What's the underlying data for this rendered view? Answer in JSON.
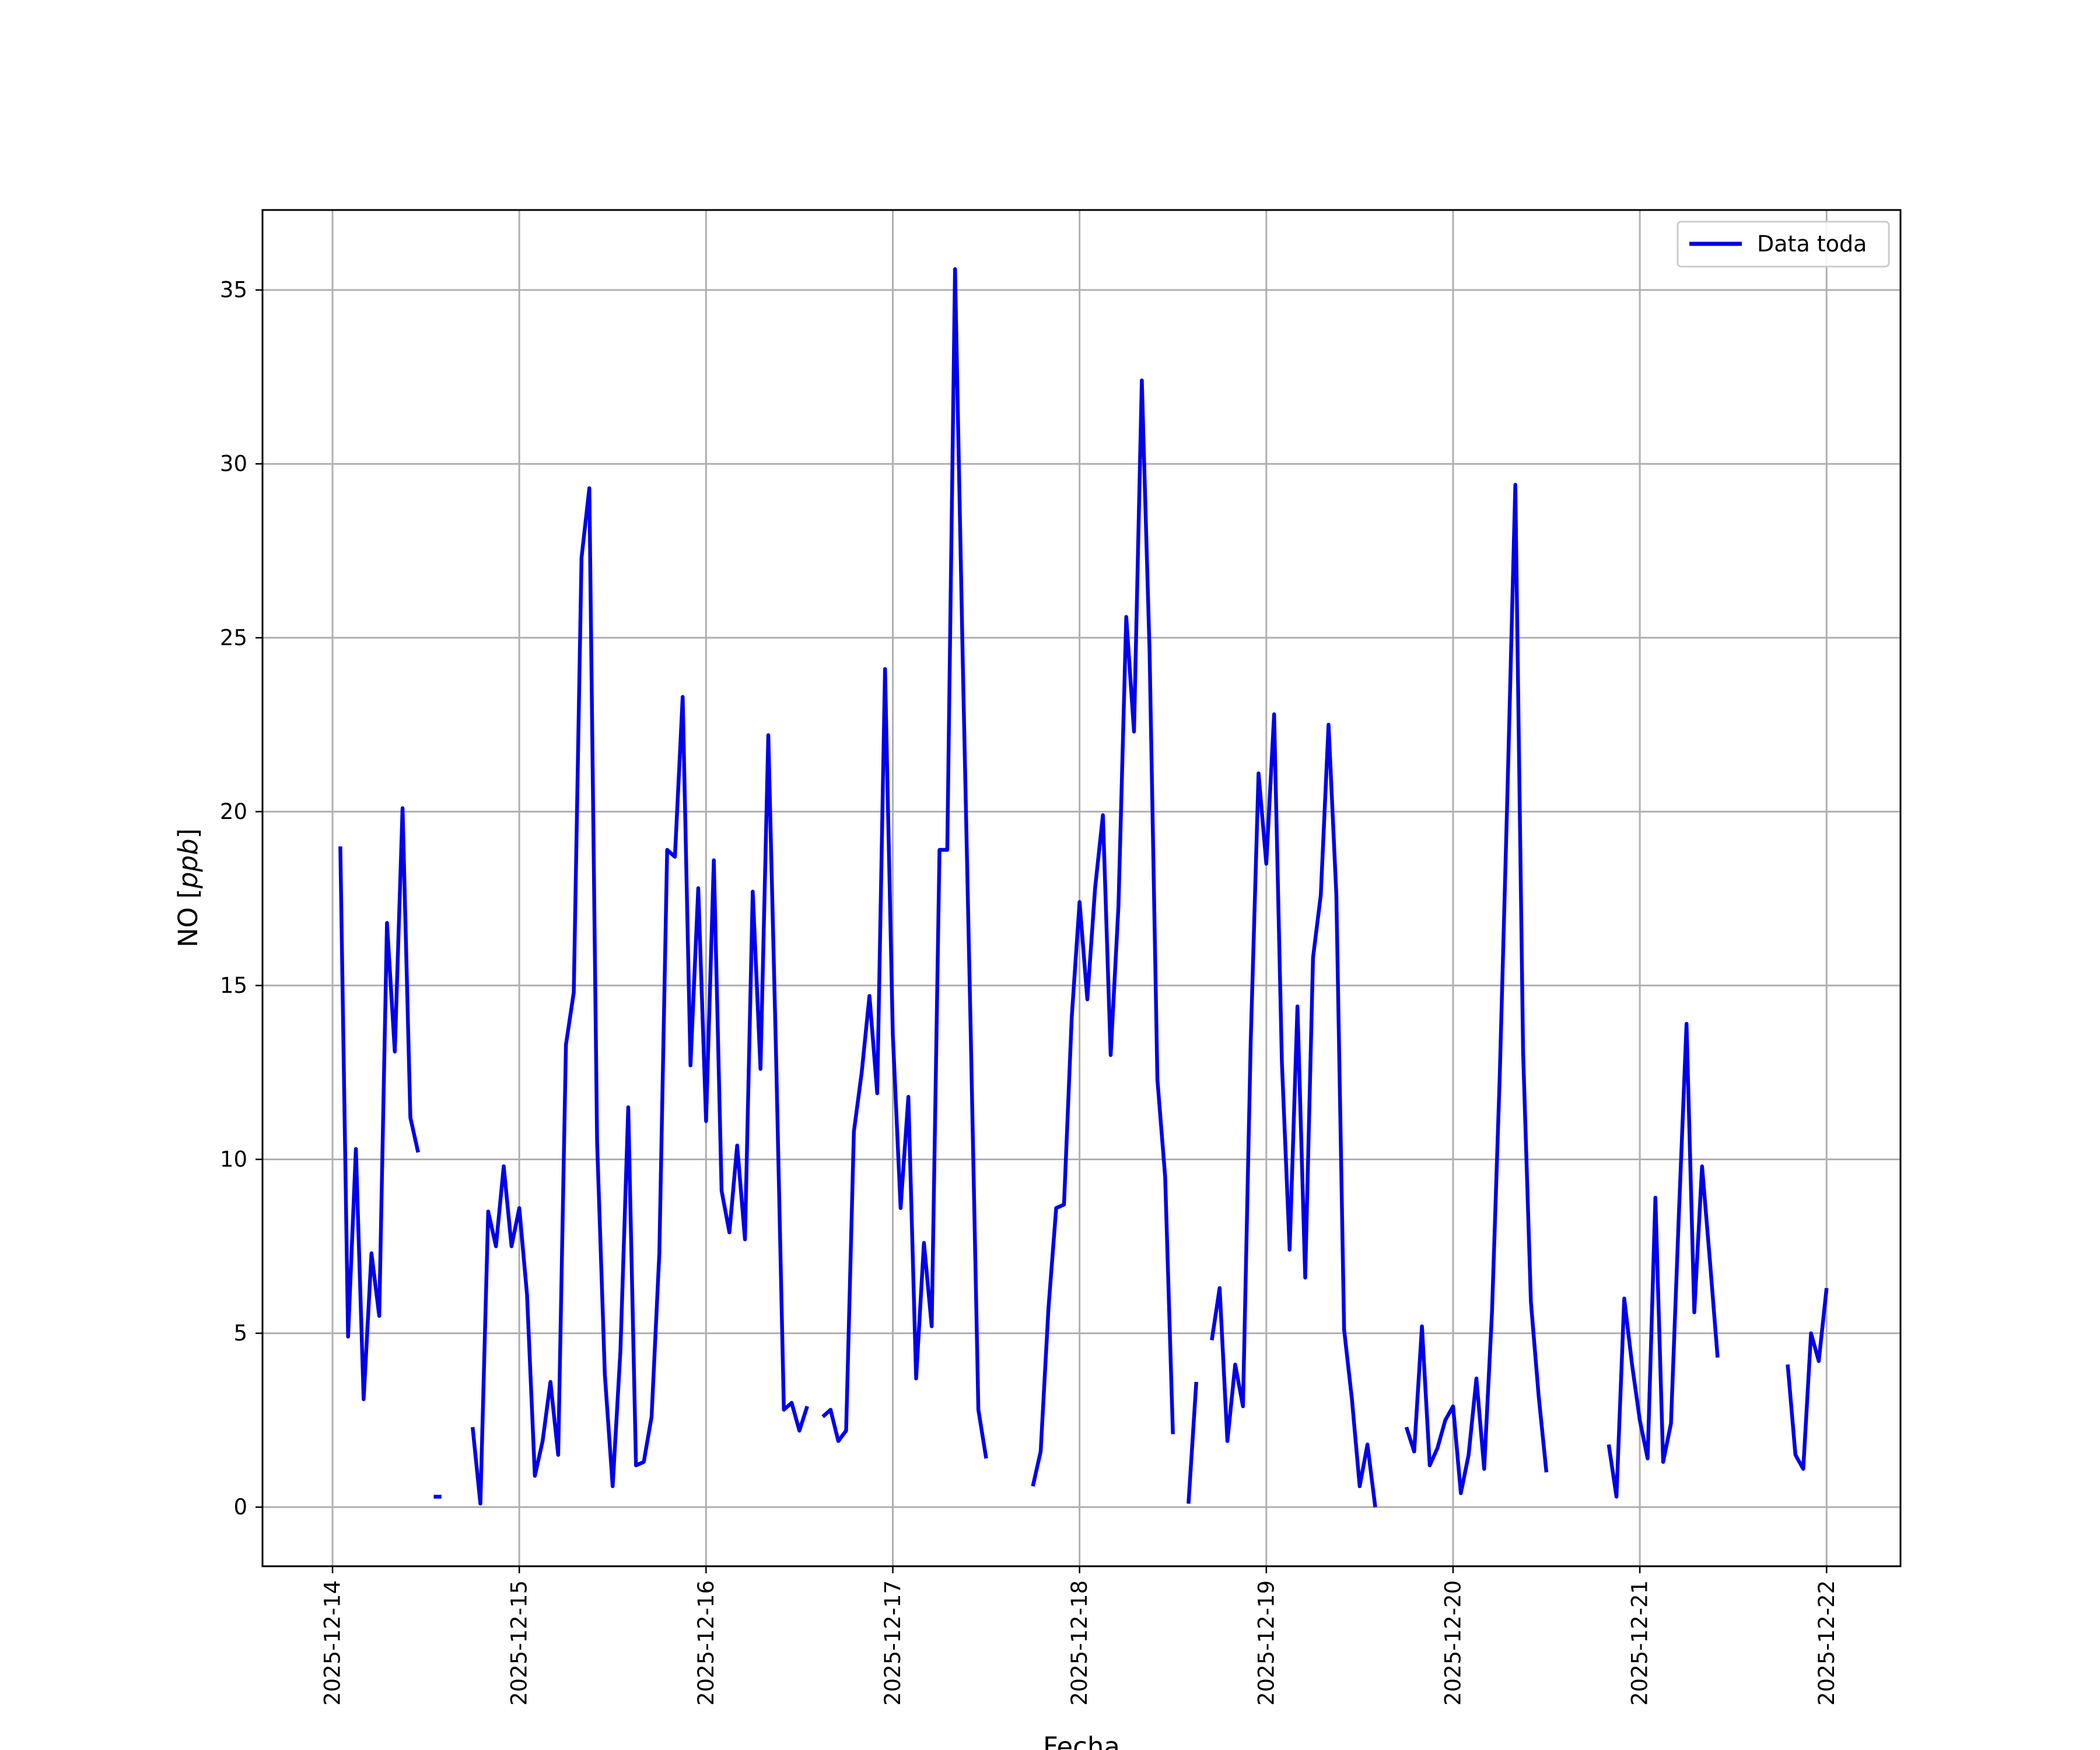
{
  "chart_data": {
    "type": "line",
    "title": "",
    "xlabel": "Fecha",
    "ylabel_prefix": "NO [",
    "ylabel_unit": "ppb",
    "ylabel_suffix": "]",
    "xlim": [
      "2025-12-13T15:00",
      "2025-12-22T09:30"
    ],
    "ylim": [
      -1.7,
      37.3
    ],
    "x_ticks": [
      "2025-12-14",
      "2025-12-15",
      "2025-12-16",
      "2025-12-17",
      "2025-12-18",
      "2025-12-19",
      "2025-12-20",
      "2025-12-21",
      "2025-12-22"
    ],
    "y_ticks": [
      0,
      5,
      10,
      15,
      20,
      25,
      30,
      35
    ],
    "grid": true,
    "legend_position": "top-right",
    "colors": {
      "series": "#0000ee"
    },
    "series": [
      {
        "name": "Data toda",
        "color": "#0000ee",
        "points": [
          [
            "2025-12-14T01:00",
            19.0
          ],
          [
            "2025-12-14T02:00",
            4.9
          ],
          [
            "2025-12-14T03:00",
            10.3
          ],
          [
            "2025-12-14T04:00",
            3.1
          ],
          [
            "2025-12-14T05:00",
            7.3
          ],
          [
            "2025-12-14T06:00",
            5.5
          ],
          [
            "2025-12-14T07:00",
            16.8
          ],
          [
            "2025-12-14T08:00",
            13.1
          ],
          [
            "2025-12-14T09:00",
            20.1
          ],
          [
            "2025-12-14T10:00",
            11.2
          ],
          [
            "2025-12-14T11:00",
            10.2
          ],
          [
            null,
            null
          ],
          [
            "2025-12-14T13:00",
            0.3
          ],
          [
            "2025-12-14T14:00",
            0.3
          ],
          [
            null,
            null
          ],
          [
            "2025-12-14T18:00",
            2.3
          ],
          [
            "2025-12-14T19:00",
            0.1
          ],
          [
            "2025-12-14T20:00",
            8.5
          ],
          [
            "2025-12-14T21:00",
            7.5
          ],
          [
            "2025-12-14T22:00",
            9.8
          ],
          [
            "2025-12-14T23:00",
            7.5
          ],
          [
            "2025-12-15T00:00",
            8.6
          ],
          [
            "2025-12-15T01:00",
            6.1
          ],
          [
            "2025-12-15T02:00",
            0.9
          ],
          [
            "2025-12-15T03:00",
            1.9
          ],
          [
            "2025-12-15T04:00",
            3.6
          ],
          [
            "2025-12-15T05:00",
            1.5
          ],
          [
            "2025-12-15T06:00",
            13.3
          ],
          [
            "2025-12-15T07:00",
            14.8
          ],
          [
            "2025-12-15T08:00",
            27.3
          ],
          [
            "2025-12-15T09:00",
            29.3
          ],
          [
            "2025-12-15T10:00",
            10.5
          ],
          [
            "2025-12-15T11:00",
            3.8
          ],
          [
            "2025-12-15T12:00",
            0.6
          ],
          [
            "2025-12-15T13:00",
            4.5
          ],
          [
            "2025-12-15T14:00",
            11.5
          ],
          [
            "2025-12-15T15:00",
            1.2
          ],
          [
            "2025-12-15T16:00",
            1.3
          ],
          [
            "2025-12-15T17:00",
            2.6
          ],
          [
            "2025-12-15T18:00",
            7.3
          ],
          [
            "2025-12-15T19:00",
            18.9
          ],
          [
            "2025-12-15T20:00",
            18.7
          ],
          [
            "2025-12-15T21:00",
            23.3
          ],
          [
            "2025-12-15T22:00",
            12.7
          ],
          [
            "2025-12-15T23:00",
            17.8
          ],
          [
            "2025-12-16T00:00",
            11.1
          ],
          [
            "2025-12-16T01:00",
            18.6
          ],
          [
            "2025-12-16T02:00",
            9.1
          ],
          [
            "2025-12-16T03:00",
            7.9
          ],
          [
            "2025-12-16T04:00",
            10.4
          ],
          [
            "2025-12-16T05:00",
            7.7
          ],
          [
            "2025-12-16T06:00",
            17.7
          ],
          [
            "2025-12-16T07:00",
            12.6
          ],
          [
            "2025-12-16T08:00",
            22.2
          ],
          [
            "2025-12-16T09:00",
            13.0
          ],
          [
            "2025-12-16T10:00",
            2.8
          ],
          [
            "2025-12-16T11:00",
            3.0
          ],
          [
            "2025-12-16T12:00",
            2.2
          ],
          [
            "2025-12-16T13:00",
            2.9
          ],
          [
            null,
            null
          ],
          [
            "2025-12-16T15:00",
            2.6
          ],
          [
            "2025-12-16T16:00",
            2.8
          ],
          [
            "2025-12-16T17:00",
            1.9
          ],
          [
            "2025-12-16T18:00",
            2.2
          ],
          [
            "2025-12-16T19:00",
            10.8
          ],
          [
            "2025-12-16T20:00",
            12.5
          ],
          [
            "2025-12-16T21:00",
            14.7
          ],
          [
            "2025-12-16T22:00",
            11.9
          ],
          [
            "2025-12-16T23:00",
            24.1
          ],
          [
            "2025-12-17T00:00",
            13.6
          ],
          [
            "2025-12-17T01:00",
            8.6
          ],
          [
            "2025-12-17T02:00",
            11.8
          ],
          [
            "2025-12-17T03:00",
            3.7
          ],
          [
            "2025-12-17T04:00",
            7.6
          ],
          [
            "2025-12-17T05:00",
            5.2
          ],
          [
            "2025-12-17T06:00",
            18.9
          ],
          [
            "2025-12-17T07:00",
            18.9
          ],
          [
            "2025-12-17T08:00",
            35.6
          ],
          [
            "2025-12-17T09:00",
            24.2
          ],
          [
            "2025-12-17T10:00",
            13.8
          ],
          [
            "2025-12-17T11:00",
            2.8
          ],
          [
            "2025-12-17T12:00",
            1.4
          ],
          [
            null,
            null
          ],
          [
            "2025-12-17T18:00",
            0.6
          ],
          [
            "2025-12-17T19:00",
            1.6
          ],
          [
            "2025-12-17T20:00",
            5.7
          ],
          [
            "2025-12-17T21:00",
            8.6
          ],
          [
            "2025-12-17T22:00",
            8.7
          ],
          [
            "2025-12-17T23:00",
            14.1
          ],
          [
            "2025-12-18T00:00",
            17.4
          ],
          [
            "2025-12-18T01:00",
            14.6
          ],
          [
            "2025-12-18T02:00",
            17.8
          ],
          [
            "2025-12-18T03:00",
            19.9
          ],
          [
            "2025-12-18T04:00",
            13.0
          ],
          [
            "2025-12-18T05:00",
            17.3
          ],
          [
            "2025-12-18T06:00",
            25.6
          ],
          [
            "2025-12-18T07:00",
            22.3
          ],
          [
            "2025-12-18T08:00",
            32.4
          ],
          [
            "2025-12-18T09:00",
            24.6
          ],
          [
            "2025-12-18T10:00",
            12.3
          ],
          [
            "2025-12-18T11:00",
            9.5
          ],
          [
            "2025-12-18T12:00",
            2.1
          ],
          [
            null,
            null
          ],
          [
            "2025-12-18T14:00",
            0.1
          ],
          [
            "2025-12-18T15:00",
            3.6
          ],
          [
            null,
            null
          ],
          [
            "2025-12-18T17:00",
            4.8
          ],
          [
            "2025-12-18T18:00",
            6.3
          ],
          [
            "2025-12-18T19:00",
            1.9
          ],
          [
            "2025-12-18T20:00",
            4.1
          ],
          [
            "2025-12-18T21:00",
            2.9
          ],
          [
            "2025-12-18T22:00",
            13.4
          ],
          [
            "2025-12-18T23:00",
            21.1
          ],
          [
            "2025-12-19T00:00",
            18.5
          ],
          [
            "2025-12-19T01:00",
            22.8
          ],
          [
            "2025-12-19T02:00",
            12.8
          ],
          [
            "2025-12-19T03:00",
            7.4
          ],
          [
            "2025-12-19T04:00",
            14.4
          ],
          [
            "2025-12-19T05:00",
            6.6
          ],
          [
            "2025-12-19T06:00",
            15.8
          ],
          [
            "2025-12-19T07:00",
            17.6
          ],
          [
            "2025-12-19T08:00",
            22.5
          ],
          [
            "2025-12-19T09:00",
            17.6
          ],
          [
            "2025-12-19T10:00",
            5.1
          ],
          [
            "2025-12-19T11:00",
            3.1
          ],
          [
            "2025-12-19T12:00",
            0.6
          ],
          [
            "2025-12-19T13:00",
            1.8
          ],
          [
            "2025-12-19T14:00",
            0.0
          ],
          [
            null,
            null
          ],
          [
            "2025-12-19T18:00",
            2.3
          ],
          [
            "2025-12-19T19:00",
            1.6
          ],
          [
            "2025-12-19T20:00",
            5.2
          ],
          [
            "2025-12-19T21:00",
            1.2
          ],
          [
            "2025-12-19T22:00",
            1.7
          ],
          [
            "2025-12-19T23:00",
            2.5
          ],
          [
            "2025-12-20T00:00",
            2.9
          ],
          [
            "2025-12-20T01:00",
            0.4
          ],
          [
            "2025-12-20T02:00",
            1.5
          ],
          [
            "2025-12-20T03:00",
            3.7
          ],
          [
            "2025-12-20T04:00",
            1.1
          ],
          [
            "2025-12-20T05:00",
            5.6
          ],
          [
            "2025-12-20T06:00",
            12.4
          ],
          [
            "2025-12-20T07:00",
            20.6
          ],
          [
            "2025-12-20T08:00",
            29.4
          ],
          [
            "2025-12-20T09:00",
            13.1
          ],
          [
            "2025-12-20T10:00",
            5.9
          ],
          [
            "2025-12-20T11:00",
            3.2
          ],
          [
            "2025-12-20T12:00",
            1.0
          ],
          [
            null,
            null
          ],
          [
            "2025-12-20T20:00",
            1.8
          ],
          [
            "2025-12-20T21:00",
            0.3
          ],
          [
            "2025-12-20T22:00",
            6.0
          ],
          [
            "2025-12-20T23:00",
            4.1
          ],
          [
            "2025-12-21T00:00",
            2.5
          ],
          [
            "2025-12-21T01:00",
            1.4
          ],
          [
            "2025-12-21T02:00",
            8.9
          ],
          [
            "2025-12-21T03:00",
            1.3
          ],
          [
            "2025-12-21T04:00",
            2.4
          ],
          [
            "2025-12-21T05:00",
            8.3
          ],
          [
            "2025-12-21T06:00",
            13.9
          ],
          [
            "2025-12-21T07:00",
            5.6
          ],
          [
            "2025-12-21T08:00",
            9.8
          ],
          [
            "2025-12-21T09:00",
            7.1
          ],
          [
            "2025-12-21T10:00",
            4.3
          ],
          [
            null,
            null
          ],
          [
            "2025-12-21T19:00",
            4.1
          ],
          [
            "2025-12-21T20:00",
            1.5
          ],
          [
            "2025-12-21T21:00",
            1.1
          ],
          [
            "2025-12-21T22:00",
            5.0
          ],
          [
            "2025-12-21T23:00",
            4.2
          ],
          [
            "2025-12-22T00:00",
            6.3
          ]
        ]
      }
    ]
  }
}
